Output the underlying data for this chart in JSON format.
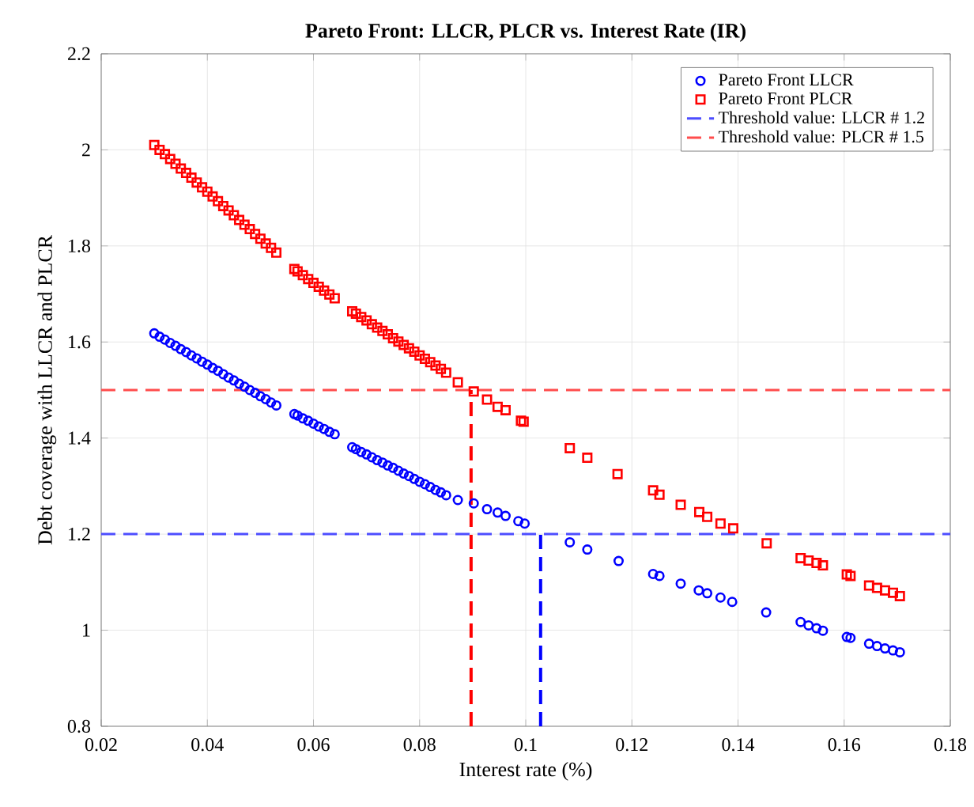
{
  "chart_data": {
    "type": "scatter",
    "title": "Pareto Front: LLCR, PLCR vs. Interest Rate (IR)",
    "xlabel": "Interest rate (%)",
    "ylabel": "Debt coverage with LLCR and PLCR",
    "xlim": [
      0.02,
      0.18
    ],
    "ylim": [
      0.8,
      2.2
    ],
    "xticks": [
      0.02,
      0.04,
      0.06,
      0.08,
      0.1,
      0.12,
      0.14,
      0.16,
      0.18
    ],
    "yticks": [
      0.8,
      1,
      1.2,
      1.4,
      1.6,
      1.8,
      2,
      2.2
    ],
    "grid": true,
    "legend": "top right",
    "series": [
      {
        "name": "Pareto Front LLCR",
        "color": "#0000ff",
        "marker": "circle",
        "x": [
          0.03,
          0.031,
          0.032,
          0.033,
          0.034,
          0.035,
          0.036,
          0.037,
          0.038,
          0.039,
          0.04,
          0.041,
          0.042,
          0.043,
          0.044,
          0.045,
          0.046,
          0.047,
          0.048,
          0.049,
          0.05,
          0.051,
          0.052,
          0.053,
          0.0564,
          0.057,
          0.058,
          0.059,
          0.06,
          0.061,
          0.062,
          0.063,
          0.064,
          0.0673,
          0.068,
          0.069,
          0.07,
          0.071,
          0.072,
          0.073,
          0.074,
          0.075,
          0.076,
          0.077,
          0.078,
          0.079,
          0.08,
          0.081,
          0.082,
          0.083,
          0.084,
          0.085,
          0.0872,
          0.0902,
          0.0927,
          0.0947,
          0.0962,
          0.0986,
          0.0998,
          0.1083,
          0.1116,
          0.1175,
          0.124,
          0.1252,
          0.1292,
          0.1326,
          0.1342,
          0.1367,
          0.1389,
          0.1453,
          0.1518,
          0.1533,
          0.1548,
          0.156,
          0.1605,
          0.1612,
          0.1647,
          0.1662,
          0.1677,
          0.1692,
          0.1705
        ],
        "values": [
          1.618,
          1.611,
          1.605,
          1.598,
          1.592,
          1.585,
          1.579,
          1.572,
          1.566,
          1.559,
          1.553,
          1.546,
          1.54,
          1.533,
          1.526,
          1.52,
          1.513,
          1.507,
          1.5,
          1.494,
          1.487,
          1.481,
          1.474,
          1.468,
          1.45,
          1.447,
          1.441,
          1.436,
          1.43,
          1.424,
          1.419,
          1.413,
          1.408,
          1.381,
          1.377,
          1.371,
          1.366,
          1.36,
          1.354,
          1.349,
          1.343,
          1.338,
          1.332,
          1.326,
          1.321,
          1.315,
          1.309,
          1.304,
          1.298,
          1.292,
          1.287,
          1.281,
          1.271,
          1.264,
          1.252,
          1.245,
          1.238,
          1.227,
          1.222,
          1.183,
          1.168,
          1.144,
          1.117,
          1.113,
          1.097,
          1.083,
          1.077,
          1.068,
          1.059,
          1.037,
          1.017,
          1.01,
          1.004,
          0.999,
          0.986,
          0.984,
          0.972,
          0.967,
          0.962,
          0.958,
          0.954
        ]
      },
      {
        "name": "Pareto Front PLCR",
        "color": "#ff0000",
        "marker": "square",
        "x": [
          0.03,
          0.031,
          0.032,
          0.033,
          0.034,
          0.035,
          0.036,
          0.037,
          0.038,
          0.039,
          0.04,
          0.041,
          0.042,
          0.043,
          0.044,
          0.045,
          0.046,
          0.047,
          0.048,
          0.049,
          0.05,
          0.051,
          0.052,
          0.053,
          0.0564,
          0.057,
          0.058,
          0.059,
          0.06,
          0.061,
          0.062,
          0.063,
          0.064,
          0.0673,
          0.068,
          0.069,
          0.07,
          0.071,
          0.072,
          0.073,
          0.074,
          0.075,
          0.076,
          0.077,
          0.078,
          0.079,
          0.08,
          0.081,
          0.082,
          0.083,
          0.084,
          0.085,
          0.0872,
          0.0902,
          0.0927,
          0.0947,
          0.0962,
          0.0991,
          0.0996,
          0.1083,
          0.1116,
          0.1173,
          0.124,
          0.1252,
          0.1292,
          0.1327,
          0.1342,
          0.1367,
          0.1391,
          0.1454,
          0.1518,
          0.1533,
          0.1548,
          0.156,
          0.1605,
          0.1612,
          0.1647,
          0.1662,
          0.1677,
          0.1692,
          0.1705
        ],
        "values": [
          2.01,
          2.0,
          1.991,
          1.981,
          1.971,
          1.961,
          1.952,
          1.942,
          1.932,
          1.922,
          1.913,
          1.903,
          1.893,
          1.883,
          1.874,
          1.864,
          1.854,
          1.844,
          1.835,
          1.825,
          1.815,
          1.805,
          1.796,
          1.786,
          1.752,
          1.747,
          1.739,
          1.731,
          1.723,
          1.715,
          1.707,
          1.699,
          1.691,
          1.664,
          1.659,
          1.652,
          1.645,
          1.637,
          1.63,
          1.623,
          1.616,
          1.608,
          1.601,
          1.594,
          1.587,
          1.58,
          1.572,
          1.565,
          1.558,
          1.551,
          1.544,
          1.536,
          1.516,
          1.497,
          1.48,
          1.465,
          1.458,
          1.436,
          1.434,
          1.379,
          1.359,
          1.325,
          1.291,
          1.282,
          1.261,
          1.246,
          1.236,
          1.222,
          1.212,
          1.181,
          1.15,
          1.145,
          1.14,
          1.135,
          1.116,
          1.113,
          1.093,
          1.088,
          1.083,
          1.078,
          1.071
        ]
      },
      {
        "type": "line",
        "color": "#ff0000",
        "line_style": "dashed",
        "x": [
          0.0897,
          0.0897
        ],
        "values": [
          0.8,
          1.5
        ]
      },
      {
        "type": "line",
        "color": "#0000ff",
        "line_style": "dashed",
        "x": [
          0.1028,
          0.1028
        ],
        "values": [
          0.8,
          1.2
        ]
      }
    ],
    "ref_lines": [
      {
        "axis": "y",
        "value": 1.2,
        "label": "Threshold value: LLCR # 1.2",
        "color": "#4d4dff",
        "line_style": "dashed"
      },
      {
        "axis": "y",
        "value": 1.5,
        "label": "Threshold value: PLCR # 1.5",
        "color": "#ff4d4d",
        "line_style": "dashed"
      }
    ]
  }
}
